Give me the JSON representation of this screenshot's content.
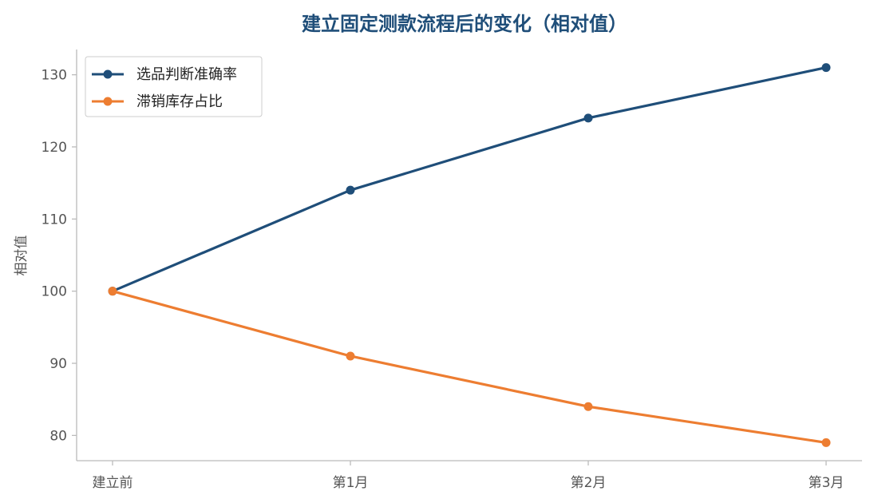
{
  "colors": {
    "title": "#1f4e79",
    "axis": "#bbbbbb",
    "tick_text": "#555555",
    "series_0": "#1f4e79",
    "series_1": "#ed7d31"
  },
  "chart_data": {
    "type": "line",
    "title": "建立固定测款流程后的变化（相对值）",
    "xlabel": "",
    "ylabel": "相对值",
    "categories": [
      "建立前",
      "第1月",
      "第2月",
      "第3月"
    ],
    "yticks": [
      80,
      90,
      100,
      110,
      120,
      130
    ],
    "ylim": [
      76.5,
      133.5
    ],
    "grid": false,
    "legend_position": "top-left",
    "series": [
      {
        "name": "选品判断准确率",
        "values": [
          100,
          114,
          124,
          131
        ]
      },
      {
        "name": "滞销库存占比",
        "values": [
          100,
          91,
          84,
          79
        ]
      }
    ]
  }
}
